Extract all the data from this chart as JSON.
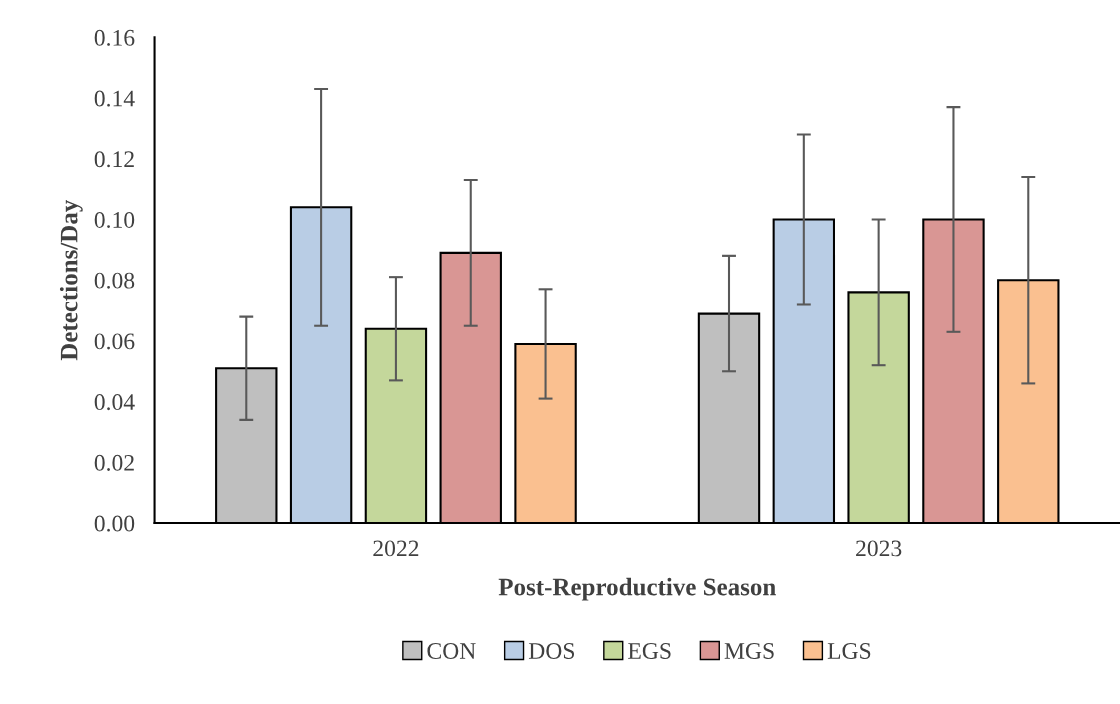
{
  "chart_data": {
    "type": "bar",
    "xlabel": "Post-Reproductive Season",
    "ylabel": "Detections/Day",
    "categories": [
      "2022",
      "2023"
    ],
    "series": [
      {
        "name": "CON",
        "color": "#bfbfbf",
        "values": [
          0.051,
          0.069
        ],
        "errors": [
          0.017,
          0.019
        ]
      },
      {
        "name": "DOS",
        "color": "#b9cde5",
        "values": [
          0.104,
          0.1
        ],
        "errors": [
          0.039,
          0.028
        ]
      },
      {
        "name": "EGS",
        "color": "#c4d79b",
        "values": [
          0.064,
          0.076
        ],
        "errors": [
          0.017,
          0.024
        ]
      },
      {
        "name": "MGS",
        "color": "#d99694",
        "values": [
          0.089,
          0.1
        ],
        "errors": [
          0.024,
          0.037
        ]
      },
      {
        "name": "LGS",
        "color": "#fac090",
        "values": [
          0.059,
          0.08
        ],
        "errors": [
          0.018,
          0.034
        ]
      }
    ],
    "ylim": [
      0,
      0.16
    ],
    "yticks": [
      {
        "value": 0,
        "label": "0.00"
      },
      {
        "value": 0.02,
        "label": "0.02"
      },
      {
        "value": 0.04,
        "label": "0.04"
      },
      {
        "value": 0.06,
        "label": "0.06"
      },
      {
        "value": 0.08,
        "label": "0.08"
      },
      {
        "value": 0.1,
        "label": "0.10"
      },
      {
        "value": 0.12,
        "label": "0.12"
      },
      {
        "value": 0.14,
        "label": "0.14"
      },
      {
        "value": 0.16,
        "label": "0.16"
      }
    ],
    "grid": false,
    "legend": "bottom"
  }
}
